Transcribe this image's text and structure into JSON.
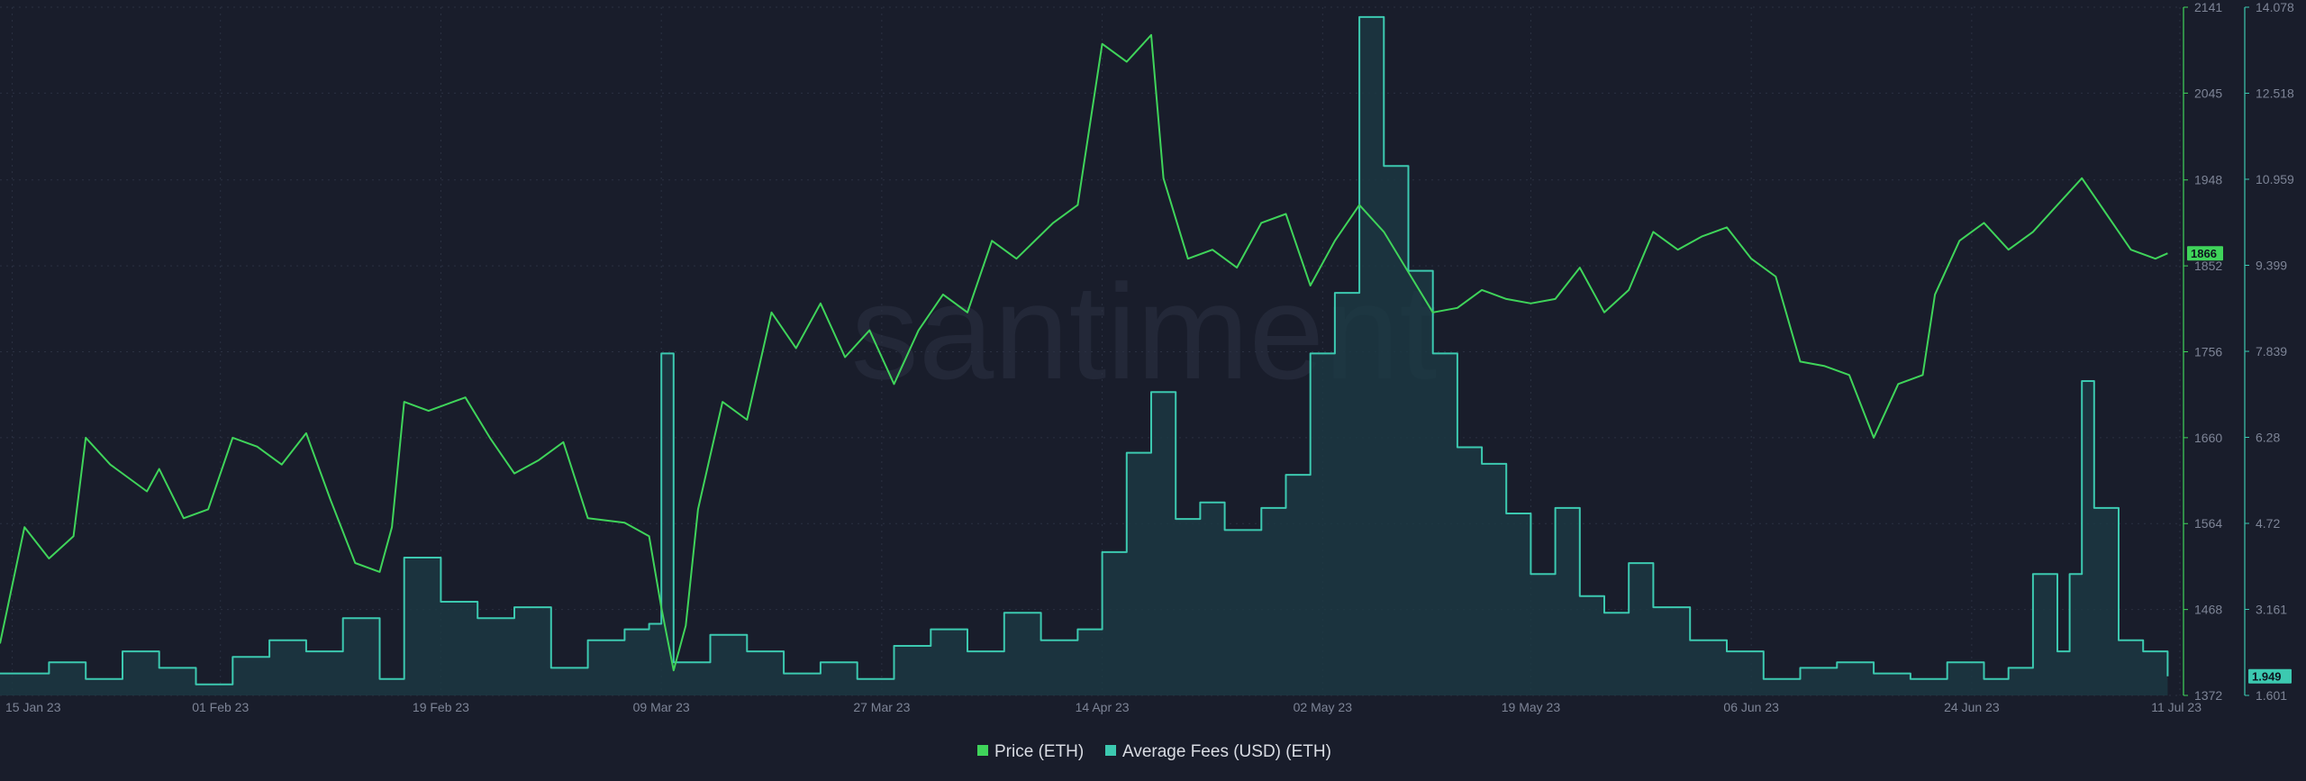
{
  "watermark": "santiment",
  "colors": {
    "background": "#191d2b",
    "grid": "#2b3142",
    "price": "#3fd45a",
    "fees": "#3cc9b0",
    "fees_fill": "#1c3a44",
    "text": "#7d8496",
    "legend_text": "#d9dce3"
  },
  "chart_data": {
    "type": "line",
    "title": "",
    "x_axis": {
      "type": "date",
      "range": [
        "2023-01-14",
        "2023-07-11"
      ],
      "ticks": [
        "15 Jan 23",
        "01 Feb 23",
        "19 Feb 23",
        "09 Mar 23",
        "27 Mar 23",
        "14 Apr 23",
        "02 May 23",
        "19 May 23",
        "06 Jun 23",
        "24 Jun 23",
        "11 Jul 23"
      ]
    },
    "y_axes": [
      {
        "id": "price",
        "position": "right-inner",
        "range": [
          1372,
          2141
        ],
        "ticks": [
          "1372",
          "1468",
          "1564",
          "1660",
          "1756",
          "1852",
          "1948",
          "2045",
          "2141"
        ]
      },
      {
        "id": "fees",
        "position": "right-outer",
        "range": [
          1.601,
          14.078
        ],
        "ticks": [
          "1.601",
          "3.161",
          "4.72",
          "6.28",
          "7.839",
          "9.399",
          "10.959",
          "12.518",
          "14.078"
        ]
      }
    ],
    "grid": true,
    "legend_position": "bottom-center",
    "series": [
      {
        "name": "Price (ETH)",
        "axis": "price",
        "color": "#3fd45a",
        "last_value_label": "1866",
        "points": [
          [
            "2023-01-14",
            1430
          ],
          [
            "2023-01-16",
            1560
          ],
          [
            "2023-01-18",
            1525
          ],
          [
            "2023-01-20",
            1550
          ],
          [
            "2023-01-21",
            1660
          ],
          [
            "2023-01-23",
            1630
          ],
          [
            "2023-01-26",
            1600
          ],
          [
            "2023-01-27",
            1625
          ],
          [
            "2023-01-29",
            1570
          ],
          [
            "2023-01-31",
            1580
          ],
          [
            "2023-02-02",
            1660
          ],
          [
            "2023-02-04",
            1650
          ],
          [
            "2023-02-06",
            1630
          ],
          [
            "2023-02-08",
            1665
          ],
          [
            "2023-02-10",
            1590
          ],
          [
            "2023-02-12",
            1520
          ],
          [
            "2023-02-14",
            1510
          ],
          [
            "2023-02-15",
            1560
          ],
          [
            "2023-02-16",
            1700
          ],
          [
            "2023-02-18",
            1690
          ],
          [
            "2023-02-21",
            1705
          ],
          [
            "2023-02-23",
            1660
          ],
          [
            "2023-02-25",
            1620
          ],
          [
            "2023-02-27",
            1635
          ],
          [
            "2023-03-01",
            1655
          ],
          [
            "2023-03-03",
            1570
          ],
          [
            "2023-03-06",
            1565
          ],
          [
            "2023-03-08",
            1550
          ],
          [
            "2023-03-09",
            1470
          ],
          [
            "2023-03-10",
            1400
          ],
          [
            "2023-03-11",
            1450
          ],
          [
            "2023-03-12",
            1580
          ],
          [
            "2023-03-14",
            1700
          ],
          [
            "2023-03-16",
            1680
          ],
          [
            "2023-03-18",
            1800
          ],
          [
            "2023-03-20",
            1760
          ],
          [
            "2023-03-22",
            1810
          ],
          [
            "2023-03-24",
            1750
          ],
          [
            "2023-03-26",
            1780
          ],
          [
            "2023-03-28",
            1720
          ],
          [
            "2023-03-30",
            1780
          ],
          [
            "2023-04-01",
            1820
          ],
          [
            "2023-04-03",
            1800
          ],
          [
            "2023-04-05",
            1880
          ],
          [
            "2023-04-07",
            1860
          ],
          [
            "2023-04-10",
            1900
          ],
          [
            "2023-04-12",
            1920
          ],
          [
            "2023-04-14",
            2100
          ],
          [
            "2023-04-16",
            2080
          ],
          [
            "2023-04-18",
            2110
          ],
          [
            "2023-04-19",
            1950
          ],
          [
            "2023-04-21",
            1860
          ],
          [
            "2023-04-23",
            1870
          ],
          [
            "2023-04-25",
            1850
          ],
          [
            "2023-04-27",
            1900
          ],
          [
            "2023-04-29",
            1910
          ],
          [
            "2023-05-01",
            1830
          ],
          [
            "2023-05-03",
            1880
          ],
          [
            "2023-05-05",
            1920
          ],
          [
            "2023-05-07",
            1890
          ],
          [
            "2023-05-09",
            1845
          ],
          [
            "2023-05-11",
            1800
          ],
          [
            "2023-05-13",
            1805
          ],
          [
            "2023-05-15",
            1825
          ],
          [
            "2023-05-17",
            1815
          ],
          [
            "2023-05-19",
            1810
          ],
          [
            "2023-05-21",
            1815
          ],
          [
            "2023-05-23",
            1850
          ],
          [
            "2023-05-25",
            1800
          ],
          [
            "2023-05-27",
            1825
          ],
          [
            "2023-05-29",
            1890
          ],
          [
            "2023-05-31",
            1870
          ],
          [
            "2023-06-02",
            1885
          ],
          [
            "2023-06-04",
            1895
          ],
          [
            "2023-06-06",
            1860
          ],
          [
            "2023-06-08",
            1840
          ],
          [
            "2023-06-10",
            1745
          ],
          [
            "2023-06-12",
            1740
          ],
          [
            "2023-06-14",
            1730
          ],
          [
            "2023-06-16",
            1660
          ],
          [
            "2023-06-18",
            1720
          ],
          [
            "2023-06-20",
            1730
          ],
          [
            "2023-06-21",
            1820
          ],
          [
            "2023-06-23",
            1880
          ],
          [
            "2023-06-25",
            1900
          ],
          [
            "2023-06-27",
            1870
          ],
          [
            "2023-06-29",
            1890
          ],
          [
            "2023-07-01",
            1920
          ],
          [
            "2023-07-03",
            1950
          ],
          [
            "2023-07-05",
            1910
          ],
          [
            "2023-07-07",
            1870
          ],
          [
            "2023-07-09",
            1860
          ],
          [
            "2023-07-10",
            1866
          ]
        ]
      },
      {
        "name": "Average Fees (USD) (ETH)",
        "axis": "fees",
        "color": "#3cc9b0",
        "last_value_label": "1.949",
        "points": [
          [
            "2023-01-14",
            2.0
          ],
          [
            "2023-01-18",
            2.2
          ],
          [
            "2023-01-21",
            1.9
          ],
          [
            "2023-01-24",
            2.4
          ],
          [
            "2023-01-27",
            2.1
          ],
          [
            "2023-01-30",
            1.8
          ],
          [
            "2023-02-02",
            2.3
          ],
          [
            "2023-02-05",
            2.6
          ],
          [
            "2023-02-08",
            2.4
          ],
          [
            "2023-02-11",
            3.0
          ],
          [
            "2023-02-14",
            1.9
          ],
          [
            "2023-02-16",
            4.1
          ],
          [
            "2023-02-19",
            3.3
          ],
          [
            "2023-02-22",
            3.0
          ],
          [
            "2023-02-25",
            3.2
          ],
          [
            "2023-02-28",
            2.1
          ],
          [
            "2023-03-03",
            2.6
          ],
          [
            "2023-03-06",
            2.8
          ],
          [
            "2023-03-08",
            2.9
          ],
          [
            "2023-03-09",
            7.8
          ],
          [
            "2023-03-10",
            2.2
          ],
          [
            "2023-03-13",
            2.7
          ],
          [
            "2023-03-16",
            2.4
          ],
          [
            "2023-03-19",
            2.0
          ],
          [
            "2023-03-22",
            2.2
          ],
          [
            "2023-03-25",
            1.9
          ],
          [
            "2023-03-28",
            2.5
          ],
          [
            "2023-03-31",
            2.8
          ],
          [
            "2023-04-03",
            2.4
          ],
          [
            "2023-04-06",
            3.1
          ],
          [
            "2023-04-09",
            2.6
          ],
          [
            "2023-04-12",
            2.8
          ],
          [
            "2023-04-14",
            4.2
          ],
          [
            "2023-04-16",
            6.0
          ],
          [
            "2023-04-18",
            7.1
          ],
          [
            "2023-04-20",
            4.8
          ],
          [
            "2023-04-22",
            5.1
          ],
          [
            "2023-04-24",
            4.6
          ],
          [
            "2023-04-27",
            5.0
          ],
          [
            "2023-04-29",
            5.6
          ],
          [
            "2023-05-01",
            7.8
          ],
          [
            "2023-05-03",
            8.9
          ],
          [
            "2023-05-05",
            13.9
          ],
          [
            "2023-05-07",
            11.2
          ],
          [
            "2023-05-09",
            9.3
          ],
          [
            "2023-05-11",
            7.8
          ],
          [
            "2023-05-13",
            6.1
          ],
          [
            "2023-05-15",
            5.8
          ],
          [
            "2023-05-17",
            4.9
          ],
          [
            "2023-05-19",
            3.8
          ],
          [
            "2023-05-21",
            5.0
          ],
          [
            "2023-05-23",
            3.4
          ],
          [
            "2023-05-25",
            3.1
          ],
          [
            "2023-05-27",
            4.0
          ],
          [
            "2023-05-29",
            3.2
          ],
          [
            "2023-06-01",
            2.6
          ],
          [
            "2023-06-04",
            2.4
          ],
          [
            "2023-06-07",
            1.9
          ],
          [
            "2023-06-10",
            2.1
          ],
          [
            "2023-06-13",
            2.2
          ],
          [
            "2023-06-16",
            2.0
          ],
          [
            "2023-06-19",
            1.9
          ],
          [
            "2023-06-22",
            2.2
          ],
          [
            "2023-06-25",
            1.9
          ],
          [
            "2023-06-27",
            2.1
          ],
          [
            "2023-06-29",
            3.8
          ],
          [
            "2023-07-01",
            2.4
          ],
          [
            "2023-07-02",
            3.8
          ],
          [
            "2023-07-03",
            7.3
          ],
          [
            "2023-07-04",
            5.0
          ],
          [
            "2023-07-06",
            2.6
          ],
          [
            "2023-07-08",
            2.4
          ],
          [
            "2023-07-10",
            1.949
          ]
        ]
      }
    ]
  }
}
